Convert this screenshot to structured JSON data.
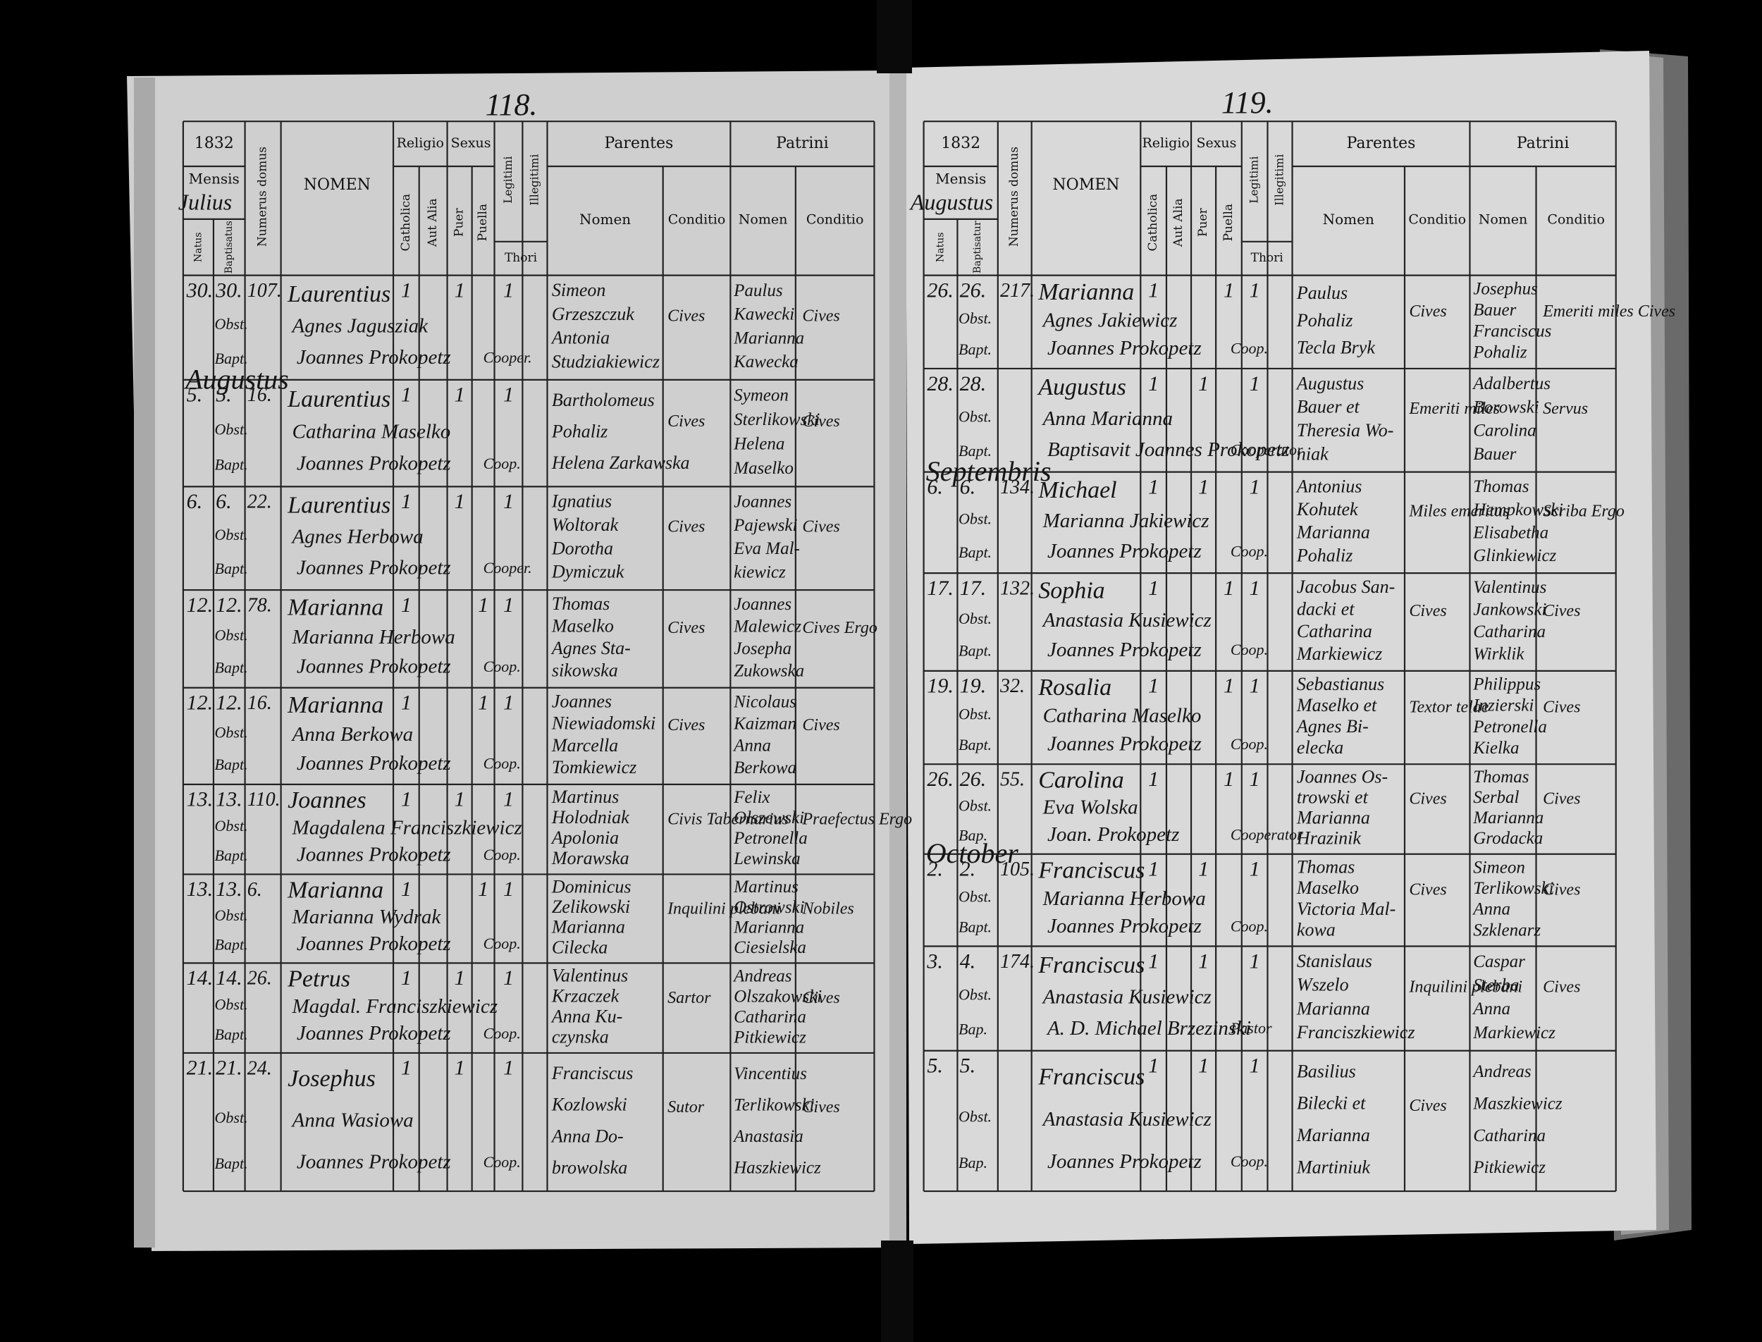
{
  "pages": [
    {
      "page_number": "118.",
      "year": "1832",
      "month": "Julius",
      "header": {
        "mensis": "Mensis",
        "natus": "Natus",
        "baptisatus": "Baptisatus",
        "domus": "Numerus domus",
        "nomen": "NOMEN",
        "religio": "Religio",
        "catholica": "Catholica",
        "aut_alia": "Aut Alia",
        "sexus": "Sexus",
        "puer": "Puer",
        "puella": "Puella",
        "legitimi": "Legitimi",
        "illegitimi": "Illegitimi",
        "thori": "Thori",
        "parentes": "Parentes",
        "patrini": "Patrini",
        "parentes_nomen": "Nomen",
        "parentes_conditio": "Conditio",
        "patrini_nomen": "Nomen",
        "patrini_conditio": "Conditio"
      },
      "rows": [
        {
          "natus": "30.",
          "baptisatus": "30.",
          "notes": [
            "Obst.",
            "Bapt."
          ],
          "domus": "107.",
          "nomen": [
            "Laurentius",
            "Agnes Jagusziak",
            "Joannes Prokopetz"
          ],
          "catholica": "1",
          "puer": "1",
          "legitimi": "1",
          "thori": "Cooper.",
          "parentes": [
            "Simeon",
            "Grzeszczuk",
            "Antonia",
            "Studziakiewicz"
          ],
          "parentes_conditio": "Cives",
          "patrini": [
            "Paulus",
            "Kawecki",
            "Marianna",
            "Kawecka"
          ],
          "patrini_conditio": "Cives"
        },
        {
          "month": "Augustus",
          "natus": "5.",
          "baptisatus": "5.",
          "notes": [
            "Obst.",
            "Bapt."
          ],
          "domus": "16.",
          "nomen": [
            "Laurentius",
            "Catharina Maselko",
            "Joannes Prokopetz"
          ],
          "catholica": "1",
          "puer": "1",
          "legitimi": "1",
          "thori": "Coop.",
          "parentes": [
            "Bartholomeus",
            "Pohaliz",
            "Helena Zarkawska"
          ],
          "parentes_conditio": "Cives",
          "patrini": [
            "Symeon",
            "Sterlikowski",
            "Helena",
            "Maselko"
          ],
          "patrini_conditio": "Cives"
        },
        {
          "natus": "6.",
          "baptisatus": "6.",
          "notes": [
            "Obst.",
            "Bapt."
          ],
          "domus": "22.",
          "nomen": [
            "Laurentius",
            "Agnes Herbowa",
            "Joannes Prokopetz"
          ],
          "catholica": "1",
          "puer": "1",
          "legitimi": "1",
          "thori": "Cooper.",
          "parentes": [
            "Ignatius",
            "Woltorak",
            "Dorotha",
            "Dymiczuk"
          ],
          "parentes_conditio": "Cives",
          "patrini": [
            "Joannes",
            "Pajewski",
            "Eva Mal-",
            "kiewicz"
          ],
          "patrini_conditio": "Cives"
        },
        {
          "natus": "12.",
          "baptisatus": "12.",
          "notes": [
            "Obst.",
            "Bapt."
          ],
          "domus": "78.",
          "nomen": [
            "Marianna",
            "Marianna Herbowa",
            "Joannes Prokopetz"
          ],
          "catholica": "1",
          "puella": "1",
          "legitimi": "1",
          "thori": "Coop.",
          "parentes": [
            "Thomas",
            "Maselko",
            "Agnes Sta-",
            "sikowska"
          ],
          "parentes_conditio": "Cives",
          "patrini": [
            "Joannes",
            "Malewicz",
            "Josepha",
            "Zukowska"
          ],
          "patrini_conditio": "Cives Ergo"
        },
        {
          "natus": "12.",
          "baptisatus": "12.",
          "notes": [
            "Obst.",
            "Bapt."
          ],
          "domus": "16.",
          "nomen": [
            "Marianna",
            "Anna Berkowa",
            "Joannes Prokopetz"
          ],
          "catholica": "1",
          "puella": "1",
          "legitimi": "1",
          "thori": "Coop.",
          "parentes": [
            "Joannes",
            "Niewiadomski",
            "Marcella",
            "Tomkiewicz"
          ],
          "parentes_conditio": "Cives",
          "patrini": [
            "Nicolaus",
            "Kaizman",
            "Anna",
            "Berkowa"
          ],
          "patrini_conditio": "Cives"
        },
        {
          "natus": "13.",
          "baptisatus": "13.",
          "notes": [
            "Obst.",
            "Bapt."
          ],
          "domus": "110.",
          "nomen": [
            "Joannes",
            "Magdalena Franciszkiewicz",
            "Joannes Prokopetz"
          ],
          "catholica": "1",
          "puer": "1",
          "legitimi": "1",
          "thori": "Coop.",
          "parentes": [
            "Martinus",
            "Holodniak",
            "Apolonia",
            "Morawska"
          ],
          "parentes_conditio": "Civis Tabernarius",
          "patrini": [
            "Felix",
            "Olszewski",
            "Petronella",
            "Lewinska"
          ],
          "patrini_conditio": "Praefectus Ergo"
        },
        {
          "natus": "13.",
          "baptisatus": "13.",
          "notes": [
            "Obst.",
            "Bapt."
          ],
          "domus": "6.",
          "nomen": [
            "Marianna",
            "Marianna Wydrak",
            "Joannes Prokopetz"
          ],
          "catholica": "1",
          "puella": "1",
          "legitimi": "1",
          "thori": "Coop.",
          "parentes": [
            "Dominicus",
            "Zelikowski",
            "Marianna",
            "Cilecka"
          ],
          "parentes_conditio": "Inquilini plebani",
          "patrini": [
            "Martinus",
            "Ostrowski",
            "Marianna",
            "Ciesielska"
          ],
          "patrini_conditio": "Nobiles"
        },
        {
          "natus": "14.",
          "baptisatus": "14.",
          "notes": [
            "Obst.",
            "Bapt."
          ],
          "domus": "26.",
          "nomen": [
            "Petrus",
            "Magdal. Franciszkiewicz",
            "Joannes Prokopetz"
          ],
          "catholica": "1",
          "puer": "1",
          "legitimi": "1",
          "thori": "Coop.",
          "parentes": [
            "Valentinus",
            "Krzaczek",
            "Anna Ku-",
            "czynska"
          ],
          "parentes_conditio": "Sartor",
          "patrini": [
            "Andreas",
            "Olszakowski",
            "Catharina",
            "Pitkiewicz"
          ],
          "patrini_conditio": "Cives"
        },
        {
          "natus": "21.",
          "baptisatus": "21.",
          "notes": [
            "Obst.",
            "Bapt."
          ],
          "domus": "24.",
          "nomen": [
            "Josephus",
            "Anna Wasiowa",
            "Joannes Prokopetz"
          ],
          "catholica": "1",
          "puer": "1",
          "legitimi": "1",
          "thori": "Coop.",
          "parentes": [
            "Franciscus",
            "Kozlowski",
            "Anna Do-",
            "browolska"
          ],
          "parentes_conditio": "Sutor",
          "patrini": [
            "Vincentius",
            "Terlikowski",
            "Anastasia",
            "Haszkiewicz"
          ],
          "patrini_conditio": "Cives"
        }
      ]
    },
    {
      "page_number": "119.",
      "year": "1832",
      "month": "Augustus",
      "header": {
        "mensis": "Mensis",
        "natus": "Natus",
        "baptisatus": "Baptisatur",
        "domus": "Numerus domus",
        "nomen": "NOMEN",
        "religio": "Religio",
        "catholica": "Catholica",
        "aut_alia": "Aut Alia",
        "sexus": "Sexus",
        "puer": "Puer",
        "puella": "Puella",
        "legitimi": "Legitimi",
        "illegitimi": "Illegitimi",
        "thori": "Thori",
        "parentes": "Parentes",
        "patrini": "Patrini",
        "parentes_nomen": "Nomen",
        "parentes_conditio": "Conditio",
        "patrini_nomen": "Nomen",
        "patrini_conditio": "Conditio"
      },
      "rows": [
        {
          "natus": "26.",
          "baptisatus": "26.",
          "notes": [
            "Obst.",
            "Bapt."
          ],
          "domus": "217.",
          "nomen": [
            "Marianna",
            "Agnes Jakiewicz",
            "Joannes Prokopetz"
          ],
          "catholica": "1",
          "puella": "1",
          "legitimi": "1",
          "thori": "Coop.",
          "parentes": [
            "Paulus",
            "Pohaliz",
            "Tecla Bryk"
          ],
          "parentes_conditio": "Cives",
          "patrini": [
            "Josephus",
            "Bauer",
            "Franciscus",
            "Pohaliz"
          ],
          "patrini_conditio": "Emeriti miles Cives"
        },
        {
          "natus": "28.",
          "baptisatus": "28.",
          "notes": [
            "Obst.",
            "Bapt."
          ],
          "domus": "",
          "nomen": [
            "Augustus",
            "Anna Marianna",
            "Baptisavit Joannes Prokopetz"
          ],
          "catholica": "1",
          "puer": "1",
          "legitimi": "1",
          "thori": "Cooperator",
          "parentes": [
            "Augustus",
            "Bauer et",
            "Theresia Wo-",
            "niak"
          ],
          "parentes_conditio": "Emeriti miles",
          "patrini": [
            "Adalbertus",
            "Borowski",
            "Carolina",
            "Bauer"
          ],
          "patrini_conditio": "Servus"
        },
        {
          "month": "Septembris",
          "natus": "6.",
          "baptisatus": "6.",
          "notes": [
            "Obst.",
            "Bapt."
          ],
          "domus": "134.",
          "nomen": [
            "Michael",
            "Marianna Jakiewicz",
            "Joannes Prokopetz"
          ],
          "catholica": "1",
          "puer": "1",
          "legitimi": "1",
          "thori": "Coop.",
          "parentes": [
            "Antonius",
            "Kohutek",
            "Marianna",
            "Pohaliz"
          ],
          "parentes_conditio": "Miles emeritus",
          "patrini": [
            "Thomas",
            "Hempkowski",
            "Elisabetha",
            "Glinkiewicz"
          ],
          "patrini_conditio": "Scriba Ergo"
        },
        {
          "natus": "17.",
          "baptisatus": "17.",
          "notes": [
            "Obst.",
            "Bapt."
          ],
          "domus": "132.",
          "nomen": [
            "Sophia",
            "Anastasia Kusiewicz",
            "Joannes Prokopetz"
          ],
          "catholica": "1",
          "puella": "1",
          "legitimi": "1",
          "thori": "Coop.",
          "parentes": [
            "Jacobus San-",
            "dacki et",
            "Catharina",
            "Markiewicz"
          ],
          "parentes_conditio": "Cives",
          "patrini": [
            "Valentinus",
            "Jankowski",
            "Catharina",
            "Wirklik"
          ],
          "patrini_conditio": "Cives"
        },
        {
          "natus": "19.",
          "baptisatus": "19.",
          "notes": [
            "Obst.",
            "Bapt."
          ],
          "domus": "32.",
          "nomen": [
            "Rosalia",
            "Catharina Maselko",
            "Joannes Prokopetz"
          ],
          "catholica": "1",
          "puella": "1",
          "legitimi": "1",
          "thori": "Coop.",
          "parentes": [
            "Sebastianus",
            "Maselko et",
            "Agnes Bi-",
            "elecka"
          ],
          "parentes_conditio": "Textor telae",
          "patrini": [
            "Philippus",
            "Inzierski",
            "Petronella",
            "Kielka"
          ],
          "patrini_conditio": "Cives"
        },
        {
          "natus": "26.",
          "baptisatus": "26.",
          "notes": [
            "Obst.",
            "Bap."
          ],
          "domus": "55.",
          "nomen": [
            "Carolina",
            "Eva Wolska",
            "Joan. Prokopetz"
          ],
          "catholica": "1",
          "puella": "1",
          "legitimi": "1",
          "thori": "Cooperator",
          "parentes": [
            "Joannes Os-",
            "trowski et",
            "Marianna",
            "Hrazinik"
          ],
          "parentes_conditio": "Cives",
          "patrini": [
            "Thomas",
            "Serbal",
            "Marianna",
            "Grodacka"
          ],
          "patrini_conditio": "Cives"
        },
        {
          "month": "October",
          "natus": "2.",
          "baptisatus": "2.",
          "notes": [
            "Obst.",
            "Bapt."
          ],
          "domus": "105.",
          "nomen": [
            "Franciscus",
            "Marianna Herbowa",
            "Joannes Prokopetz"
          ],
          "catholica": "1",
          "puer": "1",
          "legitimi": "1",
          "thori": "Coop.",
          "parentes": [
            "Thomas",
            "Maselko",
            "Victoria Mal-",
            "kowa"
          ],
          "parentes_conditio": "Cives",
          "patrini": [
            "Simeon",
            "Terlikowski",
            "Anna",
            "Szklenarz"
          ],
          "patrini_conditio": "Cives"
        },
        {
          "natus": "3.",
          "baptisatus": "4.",
          "notes": [
            "Obst.",
            "Bap."
          ],
          "domus": "174.",
          "nomen": [
            "Franciscus",
            "Anastasia Kusiewicz",
            "A. D. Michael Brzezinski"
          ],
          "catholica": "1",
          "puer": "1",
          "legitimi": "1",
          "thori": "Pastor",
          "parentes": [
            "Stanislaus",
            "Wszelo",
            "Marianna",
            "Franciszkiewicz"
          ],
          "parentes_conditio": "Inquilini plebani",
          "patrini": [
            "Caspar",
            "Sterba",
            "Anna",
            "Markiewicz"
          ],
          "patrini_conditio": "Cives"
        },
        {
          "natus": "5.",
          "baptisatus": "5.",
          "notes": [
            "Obst.",
            "Bap."
          ],
          "domus": "",
          "nomen": [
            "Franciscus",
            "Anastasia Kusiewicz",
            "Joannes Prokopetz"
          ],
          "catholica": "1",
          "puer": "1",
          "legitimi": "1",
          "thori": "Coop.",
          "parentes": [
            "Basilius",
            "Bilecki et",
            "Marianna",
            "Martiniuk"
          ],
          "parentes_conditio": "Cives",
          "patrini": [
            "Andreas",
            "Maszkiewicz",
            "Catharina",
            "Pitkiewicz"
          ],
          "patrini_conditio": ""
        }
      ]
    }
  ]
}
